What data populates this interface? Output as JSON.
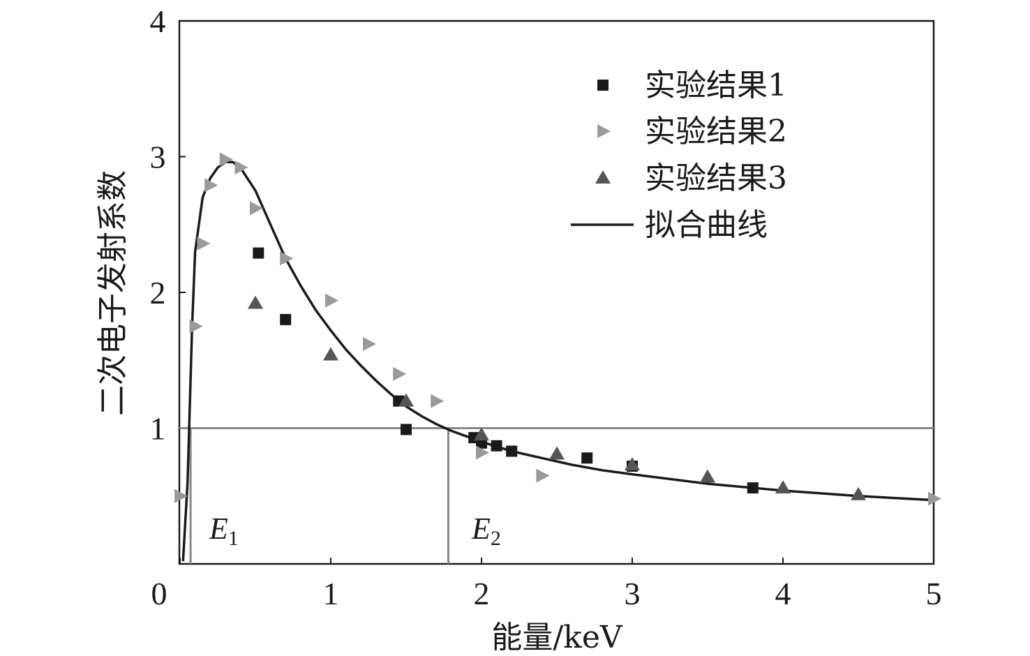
{
  "chart_data": {
    "type": "scatter",
    "title": "",
    "xlabel": "能量/keV",
    "ylabel": "二次电子发射系数",
    "xlim": [
      0,
      5
    ],
    "ylim": [
      0,
      4
    ],
    "x_ticks": [
      0,
      1,
      2,
      3,
      4,
      5
    ],
    "y_ticks": [
      1,
      2,
      3,
      4
    ],
    "x_tick_labels": [
      "0",
      "1",
      "2",
      "3",
      "4",
      "5"
    ],
    "y_tick_labels": [
      "1",
      "2",
      "3",
      "4"
    ],
    "grid": false,
    "legend_position": "top-right",
    "colors": {
      "series1": "#1a1a1a",
      "series2": "#9a9a9a",
      "series3": "#555555",
      "fit": "#1a1a1a",
      "reference": "#888888"
    },
    "series": [
      {
        "name": "实验结果1",
        "marker": "square",
        "points": [
          [
            0.52,
            2.29
          ],
          [
            0.7,
            1.8
          ],
          [
            1.45,
            1.2
          ],
          [
            1.5,
            0.99
          ],
          [
            1.95,
            0.93
          ],
          [
            2.0,
            0.89
          ],
          [
            2.1,
            0.87
          ],
          [
            2.2,
            0.83
          ],
          [
            2.7,
            0.78
          ],
          [
            3.0,
            0.72
          ],
          [
            3.8,
            0.56
          ]
        ]
      },
      {
        "name": "实验结果2",
        "marker": "triangle-right",
        "points": [
          [
            0.0,
            0.5
          ],
          [
            0.1,
            1.75
          ],
          [
            0.15,
            2.36
          ],
          [
            0.2,
            2.79
          ],
          [
            0.3,
            2.98
          ],
          [
            0.4,
            2.92
          ],
          [
            0.5,
            2.62
          ],
          [
            0.7,
            2.25
          ],
          [
            1.0,
            1.94
          ],
          [
            1.25,
            1.62
          ],
          [
            1.45,
            1.4
          ],
          [
            1.7,
            1.2
          ],
          [
            2.0,
            0.82
          ],
          [
            2.4,
            0.65
          ],
          [
            5.0,
            0.48
          ]
        ]
      },
      {
        "name": "实验结果3",
        "marker": "triangle-up",
        "points": [
          [
            0.5,
            1.92
          ],
          [
            1.0,
            1.54
          ],
          [
            1.5,
            1.2
          ],
          [
            2.0,
            0.95
          ],
          [
            2.5,
            0.81
          ],
          [
            3.0,
            0.73
          ],
          [
            3.5,
            0.64
          ],
          [
            4.0,
            0.56
          ],
          [
            4.5,
            0.51
          ]
        ]
      },
      {
        "name": "拟合曲线",
        "type": "line",
        "points": [
          [
            0.02,
            0.02
          ],
          [
            0.05,
            0.6
          ],
          [
            0.08,
            1.75
          ],
          [
            0.1,
            2.3
          ],
          [
            0.15,
            2.7
          ],
          [
            0.2,
            2.84
          ],
          [
            0.25,
            2.92
          ],
          [
            0.3,
            2.96
          ],
          [
            0.35,
            2.96
          ],
          [
            0.4,
            2.92
          ],
          [
            0.5,
            2.75
          ],
          [
            0.6,
            2.5
          ],
          [
            0.7,
            2.25
          ],
          [
            0.8,
            2.05
          ],
          [
            0.9,
            1.87
          ],
          [
            1.0,
            1.72
          ],
          [
            1.1,
            1.58
          ],
          [
            1.2,
            1.46
          ],
          [
            1.3,
            1.35
          ],
          [
            1.4,
            1.25
          ],
          [
            1.5,
            1.16
          ],
          [
            1.6,
            1.09
          ],
          [
            1.7,
            1.03
          ],
          [
            1.8,
            0.98
          ],
          [
            1.9,
            0.94
          ],
          [
            2.0,
            0.9
          ],
          [
            2.2,
            0.83
          ],
          [
            2.4,
            0.78
          ],
          [
            2.6,
            0.73
          ],
          [
            2.8,
            0.69
          ],
          [
            3.0,
            0.66
          ],
          [
            3.5,
            0.59
          ],
          [
            4.0,
            0.54
          ],
          [
            4.5,
            0.5
          ],
          [
            5.0,
            0.47
          ]
        ]
      }
    ],
    "reference_line_y": 1,
    "annotations": [
      {
        "base": "E",
        "sub": "1",
        "x": 0.07
      },
      {
        "base": "E",
        "sub": "2",
        "x": 1.78
      }
    ]
  }
}
